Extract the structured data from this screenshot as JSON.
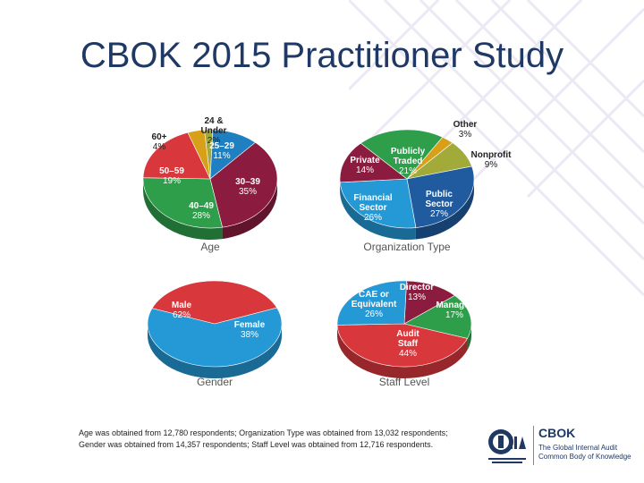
{
  "slide": {
    "title": "CBOK 2015 Practitioner Study",
    "footnote": "Age was obtained from 12,780 respondents; Organization Type was obtained from 13,032 respondents; Gender was obtained from 14,357 respondents; Staff Level was obtained from 12,716 respondents."
  },
  "logo": {
    "name": "CBOK",
    "tagline": "The Global Internal Audit Common Body of Knowledge"
  },
  "chart_data": [
    {
      "type": "pie",
      "title": "Age",
      "slices": [
        {
          "label": "24 & Under",
          "value": 2,
          "display": "2%",
          "color": "#a2aa3a"
        },
        {
          "label": "25–29",
          "value": 11,
          "display": "11%",
          "color": "#1f7fc1"
        },
        {
          "label": "30–39",
          "value": 35,
          "display": "35%",
          "color": "#8c1c3f"
        },
        {
          "label": "40–49",
          "value": 28,
          "display": "28%",
          "color": "#2e9e4a"
        },
        {
          "label": "50–59",
          "value": 19,
          "display": "19%",
          "color": "#d8373c"
        },
        {
          "label": "60+",
          "value": 4,
          "display": "4%",
          "color": "#d8a019"
        }
      ]
    },
    {
      "type": "pie",
      "title": "Organization Type",
      "slices": [
        {
          "label": "Other",
          "value": 3,
          "display": "3%",
          "color": "#d8a019"
        },
        {
          "label": "Nonprofit",
          "value": 9,
          "display": "9%",
          "color": "#a2aa3a"
        },
        {
          "label": "Public Sector",
          "value": 27,
          "display": "27%",
          "color": "#1f5b9e"
        },
        {
          "label": "Financial Sector",
          "value": 26,
          "display": "26%",
          "color": "#2499d6"
        },
        {
          "label": "Private",
          "value": 14,
          "display": "14%",
          "color": "#8c1c3f"
        },
        {
          "label": "Publicly Traded",
          "value": 21,
          "display": "21%",
          "color": "#2e9e4a"
        }
      ]
    },
    {
      "type": "pie",
      "title": "Gender",
      "slices": [
        {
          "label": "Male",
          "value": 62,
          "display": "62%",
          "color": "#2499d6"
        },
        {
          "label": "Female",
          "value": 38,
          "display": "38%",
          "color": "#d8373c"
        }
      ]
    },
    {
      "type": "pie",
      "title": "Staff Level",
      "slices": [
        {
          "label": "Director",
          "value": 13,
          "display": "13%",
          "color": "#8c1c3f"
        },
        {
          "label": "Manager",
          "value": 17,
          "display": "17%",
          "color": "#2e9e4a"
        },
        {
          "label": "Audit Staff",
          "value": 44,
          "display": "44%",
          "color": "#d8373c"
        },
        {
          "label": "CAE or Equivalent",
          "value": 26,
          "display": "26%",
          "color": "#2499d6"
        }
      ]
    }
  ]
}
